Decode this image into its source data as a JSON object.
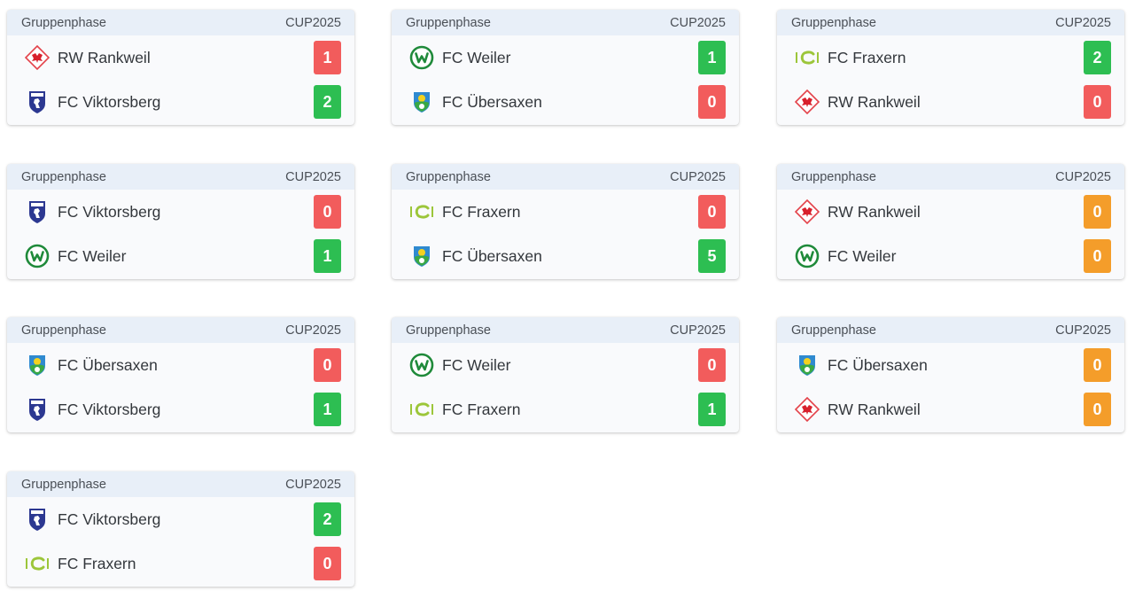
{
  "matches": [
    {
      "phase": "Gruppenphase",
      "cup": "CUP2025",
      "home": {
        "name": "RW Rankweil",
        "logo": "rw-rankweil-logo",
        "score": "1",
        "status": "loss"
      },
      "away": {
        "name": "FC Viktorsberg",
        "logo": "fc-viktorsberg-logo",
        "score": "2",
        "status": "win"
      }
    },
    {
      "phase": "Gruppenphase",
      "cup": "CUP2025",
      "home": {
        "name": "FC Weiler",
        "logo": "fc-weiler-logo",
        "score": "1",
        "status": "win"
      },
      "away": {
        "name": "FC Übersaxen",
        "logo": "fc-uebersaxen-logo",
        "score": "0",
        "status": "loss"
      }
    },
    {
      "phase": "Gruppenphase",
      "cup": "CUP2025",
      "home": {
        "name": "FC Fraxern",
        "logo": "fc-fraxern-logo",
        "score": "2",
        "status": "win"
      },
      "away": {
        "name": "RW Rankweil",
        "logo": "rw-rankweil-logo",
        "score": "0",
        "status": "loss"
      }
    },
    {
      "phase": "Gruppenphase",
      "cup": "CUP2025",
      "home": {
        "name": "FC Viktorsberg",
        "logo": "fc-viktorsberg-logo",
        "score": "0",
        "status": "loss"
      },
      "away": {
        "name": "FC Weiler",
        "logo": "fc-weiler-logo",
        "score": "1",
        "status": "win"
      }
    },
    {
      "phase": "Gruppenphase",
      "cup": "CUP2025",
      "home": {
        "name": "FC Fraxern",
        "logo": "fc-fraxern-logo",
        "score": "0",
        "status": "loss"
      },
      "away": {
        "name": "FC Übersaxen",
        "logo": "fc-uebersaxen-logo",
        "score": "5",
        "status": "win"
      }
    },
    {
      "phase": "Gruppenphase",
      "cup": "CUP2025",
      "home": {
        "name": "RW Rankweil",
        "logo": "rw-rankweil-logo",
        "score": "0",
        "status": "draw"
      },
      "away": {
        "name": "FC Weiler",
        "logo": "fc-weiler-logo",
        "score": "0",
        "status": "draw"
      }
    },
    {
      "phase": "Gruppenphase",
      "cup": "CUP2025",
      "home": {
        "name": "FC Übersaxen",
        "logo": "fc-uebersaxen-logo",
        "score": "0",
        "status": "loss"
      },
      "away": {
        "name": "FC Viktorsberg",
        "logo": "fc-viktorsberg-logo",
        "score": "1",
        "status": "win"
      }
    },
    {
      "phase": "Gruppenphase",
      "cup": "CUP2025",
      "home": {
        "name": "FC Weiler",
        "logo": "fc-weiler-logo",
        "score": "0",
        "status": "loss"
      },
      "away": {
        "name": "FC Fraxern",
        "logo": "fc-fraxern-logo",
        "score": "1",
        "status": "win"
      }
    },
    {
      "phase": "Gruppenphase",
      "cup": "CUP2025",
      "home": {
        "name": "FC Übersaxen",
        "logo": "fc-uebersaxen-logo",
        "score": "0",
        "status": "draw"
      },
      "away": {
        "name": "RW Rankweil",
        "logo": "rw-rankweil-logo",
        "score": "0",
        "status": "draw"
      }
    },
    {
      "phase": "Gruppenphase",
      "cup": "CUP2025",
      "home": {
        "name": "FC Viktorsberg",
        "logo": "fc-viktorsberg-logo",
        "score": "2",
        "status": "win"
      },
      "away": {
        "name": "FC Fraxern",
        "logo": "fc-fraxern-logo",
        "score": "0",
        "status": "loss"
      }
    }
  ],
  "colors": {
    "win": "#2dbe52",
    "loss": "#f25c5c",
    "draw": "#f49d2a",
    "header_bg": "#e8eff8",
    "card_bg": "#f9fafc"
  }
}
